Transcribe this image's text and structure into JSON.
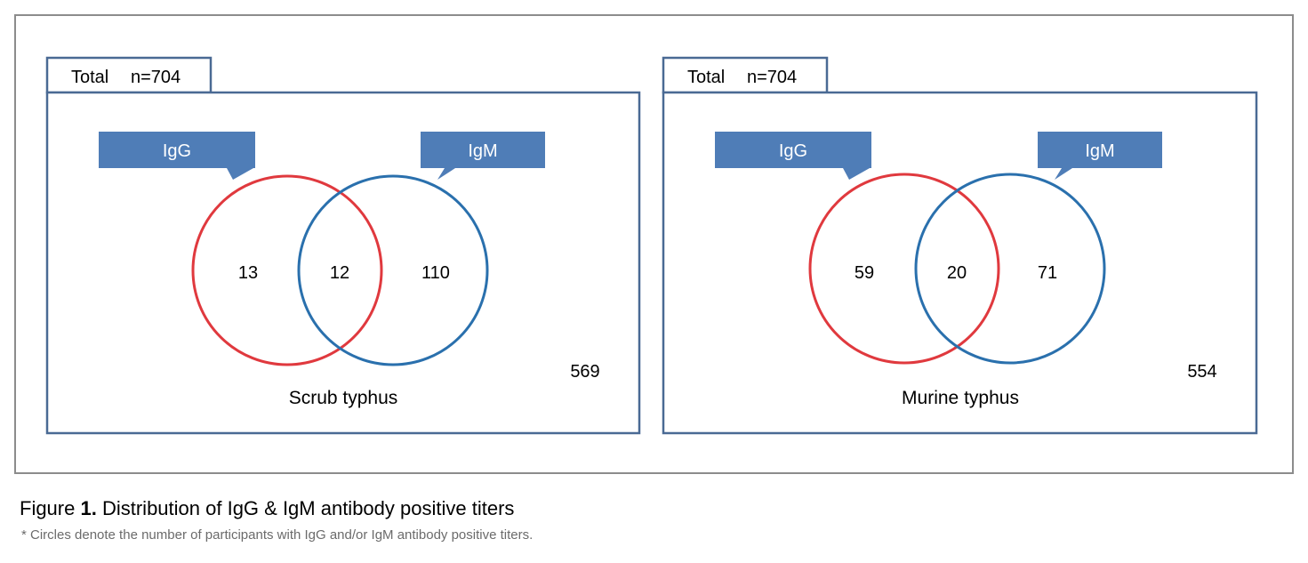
{
  "panels": [
    {
      "total_label": "Total",
      "total_n": "n=704",
      "igg_label": "IgG",
      "igm_label": "IgM",
      "igg_only": "13",
      "both": "12",
      "igm_only": "110",
      "neither": "569",
      "title": "Scrub typhus"
    },
    {
      "total_label": "Total",
      "total_n": "n=704",
      "igg_label": "IgG",
      "igm_label": "IgM",
      "igg_only": "59",
      "both": "20",
      "igm_only": "71",
      "neither": "554",
      "title": "Murine typhus"
    }
  ],
  "caption": {
    "prefix": "Figure",
    "number": "1.",
    "text": "Distribution of IgG & IgM antibody positive titers",
    "note": "* Circles denote the number of participants with IgG and/or IgM antibody positive titers."
  },
  "colors": {
    "igg_circle": "#e0393e",
    "igm_circle": "#2a70ad",
    "callout_fill": "#4f7db7",
    "frame": "#4a6a94",
    "outer_frame": "#8c8c8c"
  }
}
